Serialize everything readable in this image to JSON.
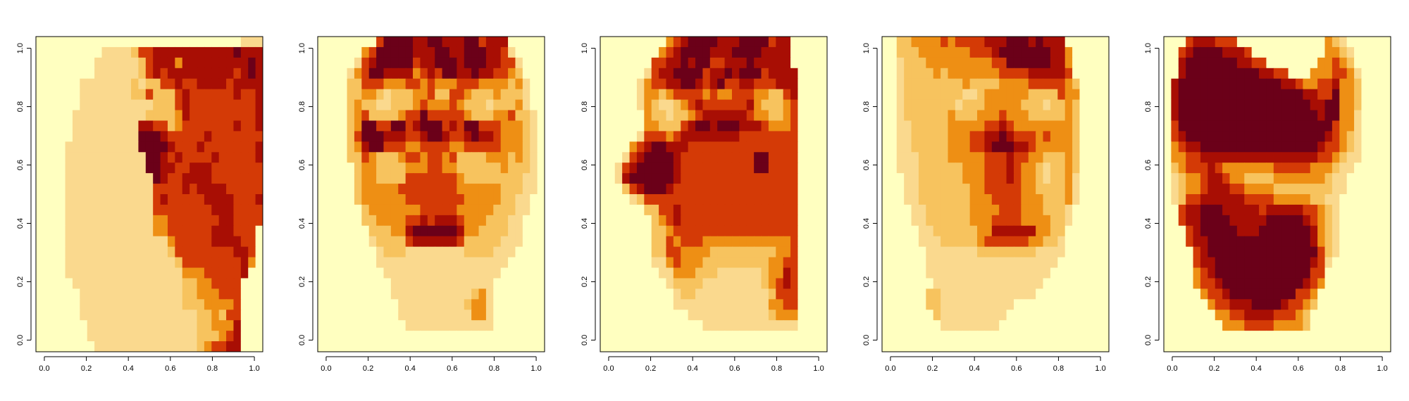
{
  "chart_data": [
    {
      "type": "heatmap",
      "title": "",
      "xlabel": "",
      "ylabel": "",
      "xlim": [
        0,
        1
      ],
      "ylim": [
        0,
        1
      ],
      "grid": false,
      "palette": "heat (dark red to pale yellow)",
      "colors": [
        "#6B0019",
        "#A80E04",
        "#D43A06",
        "#EE8F14",
        "#F7C35E",
        "#FAD98E",
        "#FFFFC0"
      ],
      "x_ticks": [
        "0.0",
        "0.2",
        "0.4",
        "0.6",
        "0.8",
        "1.0"
      ],
      "y_ticks": [
        "0.0",
        "0.2",
        "0.4",
        "0.6",
        "0.8",
        "1.0"
      ],
      "description_view": "face profile facing right",
      "grid_rows": [
        "6666666666666666666666666666555",
        "6666666665555422111111111110111",
        "6666666655555542111311111111101",
        "6666666655555542121111111112101",
        "6666665555555454422122111121111",
        "6666665555555442444212222221221",
        "6666665555555555444212222222221",
        "6666655555555554444312222222221",
        "6666655555555511224322222221221",
        "6666655555555500012222212222222",
        "6666555555555500001222122222221",
        "6666555555555550012122221222221",
        "6666555555555550011221112222222",
        "6666555555555555012211112222222",
        "6666555555555555222212111122222",
        "6666555555555555212222211112221",
        "6666555555555555222222221112222",
        "6666555555555555332222222112222",
        "6666555555555555332222221112226",
        "6666555555555555553222221111226",
        "6666555555555555554222222221126",
        "6666555555555555555422222222136",
        "6666555555555555555533322222166",
        "6666655555555555555544332222666",
        "6666665555555555555544333222666",
        "6666665555555555555544433332666",
        "6666665555555555555555443422666",
        "6666666555555555555555443331666",
        "6666666555555555555555444321666",
        "6666666655555555555555432211666"
      ]
    },
    {
      "type": "heatmap",
      "title": "",
      "xlabel": "",
      "ylabel": "",
      "xlim": [
        0,
        1
      ],
      "ylim": [
        0,
        1
      ],
      "grid": false,
      "palette": "heat (dark red to pale yellow)",
      "colors": [
        "#6B0019",
        "#A80E04",
        "#D43A06",
        "#EE8F14",
        "#F7C35E",
        "#FAD98E",
        "#FFFFC0"
      ],
      "x_ticks": [
        "0.0",
        "0.2",
        "0.4",
        "0.6",
        "0.8",
        "1.0"
      ],
      "y_ticks": [
        "0.0",
        "0.2",
        "0.4",
        "0.6",
        "0.8",
        "1.0"
      ],
      "description_view": "face frontal",
      "grid_rows": [
        "6666666620000110011100211166666",
        "6666663200000111001100011256666",
        "6666652100000211000100011225666",
        "6666532001111321200110112234666",
        "6666442223332232333222333343566",
        "6666443345444332442234443444566",
        "6666434455444323332344454443566",
        "6666432444432202222234443324456",
        "6666430022002100021200222333456",
        "6666420001112210012210112333456",
        "6666431002223322223322222333456",
        "6666442344432232232444433343456",
        "6666643344443332233444444344456",
        "6666643344442222222344444444556",
        "6666643333322222222333333444556",
        "6666643333332222222233333445566",
        "6666664333333322222333334445566",
        "6666664433332212111233344455666",
        "6666666444331000000133444455666",
        "6666666544442111111244444555666",
        "6666666654445555555544445556666",
        "6666666655555555555555555566666",
        "6666666665555555555555555666666",
        "6666666666555555555555556666666",
        "6666666666555555555554356666666",
        "6666666666655555555543356666666",
        "6666666666655555555553356666666",
        "6666666666665555555555556666666",
        "6666666666666666666666666666666",
        "6666666666666666666666666666666"
      ]
    },
    {
      "type": "heatmap",
      "title": "",
      "xlabel": "",
      "ylabel": "",
      "xlim": [
        0,
        1
      ],
      "ylim": [
        0,
        1
      ],
      "grid": false,
      "palette": "heat (dark red to pale yellow)",
      "colors": [
        "#6B0019",
        "#A80E04",
        "#D43A06",
        "#EE8F14",
        "#F7C35E",
        "#FAD98E",
        "#FFFFC0"
      ],
      "x_ticks": [
        "0.0",
        "0.2",
        "0.4",
        "0.6",
        "0.8",
        "1.0"
      ],
      "y_ticks": [
        "0.0",
        "0.2",
        "0.4",
        "0.6",
        "0.8",
        "1.0"
      ],
      "description_view": "face profile facing left",
      "grid_rows": [
        "6666666663210000111000021166666",
        "6666666632100001110000111166666",
        "6666666221101002211101111166666",
        "6666665211000021101000211116666",
        "6666653221100121022112221116666",
        "6666653343222232332223344216666",
        "6666653455432122222213444326666",
        "6666663445443211111123344326666",
        "6666663344421001000111233326666",
        "6666652223211111111222222226666",
        "6666321001112222222222222226666",
        "6665210000122222222220022226666",
        "6652100000122222222220022226666",
        "6651000000122222222222222226666",
        "6664210001222222222222222226666",
        "6666542222222222222222222226666",
        "6666664422122222222222222226666",
        "6666666432122222222222222226666",
        "6666666443222222222222222226666",
        "6666666442322233333333333326666",
        "6666666442233334444444443326666",
        "6666666553233344444444433226666",
        "6666666655333444555555433126666",
        "6666666665444455555555432126666",
        "6666666666544555555555542226666",
        "6666666666555555555555533226666",
        "6666666666665555555555543336666",
        "6666666666666655555555555556666",
        "6666666666666666666666666666666",
        "6666666666666666666666666666666"
      ]
    },
    {
      "type": "heatmap",
      "title": "",
      "xlabel": "",
      "ylabel": "",
      "xlim": [
        0,
        1
      ],
      "ylim": [
        0,
        1
      ],
      "grid": false,
      "palette": "heat (dark red to pale yellow)",
      "colors": [
        "#6B0019",
        "#A80E04",
        "#D43A06",
        "#EE8F14",
        "#F7C35E",
        "#FAD98E",
        "#FFFFC0"
      ],
      "x_ticks": [
        "0.0",
        "0.2",
        "0.4",
        "0.6",
        "0.8",
        "1.0"
      ],
      "y_ticks": [
        "0.0",
        "0.2",
        "0.4",
        "0.6",
        "0.8",
        "1.0"
      ],
      "description_view": "face frontal, bright",
      "grid_rows": [
        "6644333323222211100010111666666",
        "6644433333332221000000011366666",
        "6654443333333332200000011366666",
        "6654444343333333222211111266666",
        "6654444444434444333322222346666",
        "6654444444455433333344442336666",
        "6654444444544433333444544346666",
        "6654444443444333233344444346666",
        "6655444443333322123333333346666",
        "6655444443332211012223233346666",
        "6655444443332210001123333346666",
        "6655544443333322212233444346666",
        "6655544444433322212334544346666",
        "6665544444433322212334544356666",
        "6665544444443322222334444356666",
        "6665544444443332222333444356666",
        "6666554444443333222333444566666",
        "6666554444443332222333344566666",
        "6666655444444331111113344666666",
        "6666655544444322222233445666666",
        "6666665555555444444445555666666",
        "6666665555555555555555556666666",
        "6666665555555555555555566666666",
        "6666666555555555555555666666666",
        "6666664455555555555556666666666",
        "6666664455555555556666666666666",
        "6666666455555555566666666666666",
        "6666666655555555666666666666666",
        "6666666666666666666666666666666",
        "6666666666666666666666666666666"
      ]
    },
    {
      "type": "heatmap",
      "title": "",
      "xlabel": "",
      "ylabel": "",
      "xlim": [
        0,
        1
      ],
      "ylim": [
        0,
        1
      ],
      "grid": false,
      "palette": "heat (dark red to pale yellow)",
      "colors": [
        "#6B0019",
        "#A80E04",
        "#D43A06",
        "#EE8F14",
        "#F7C35E",
        "#FAD98E",
        "#FFFFC0"
      ],
      "x_ticks": [
        "0.0",
        "0.2",
        "0.4",
        "0.6",
        "0.8",
        "1.0"
      ],
      "y_ticks": [
        "0.0",
        "0.2",
        "0.4",
        "0.6",
        "0.8",
        "1.0"
      ],
      "description_view": "dark face pattern",
      "grid_rows": [
        "6662111222666666666666345666666",
        "6621000011126666666666334566666",
        "6610000000112266666663323466666",
        "6610000000000112266633322356666",
        "6100000000000000112332213346666",
        "6100000000000000000112203346666",
        "6100000000000000000011003346666",
        "6100000000000000000001003356666",
        "6200000000000000000000023356666",
        "6210000000000000000000123456666",
        "6321100000000000000001223456666",
        "6332211111111111111112234556666",
        "6432221233333332222233345566666",
        "6543321123344443333333455666666",
        "6543321112233334444444455666666",
        "6542211111122223333344556666666",
        "6621100011111211111223456666666",
        "6621100001111100000123456666666",
        "6662100000111000000013456666666",
        "6662110000000000000013456666666",
        "6666210000000000000002456666666",
        "6666211000000000000012566666666",
        "6666321000000000000022666666666",
        "6666322100000000000123666666666",
        "6666632210000000002236666666666",
        "6666663221110000122346666666666",
        "6666666332211112223466666666666",
        "6666666633322223333466666666666",
        "6666666666666666666666666666666",
        "6666666666666666666666666666666"
      ]
    }
  ]
}
